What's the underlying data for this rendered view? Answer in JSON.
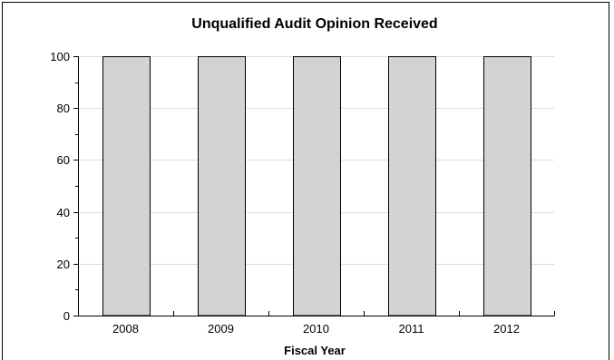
{
  "chart_data": {
    "type": "bar",
    "title": "Unqualified Audit Opinion Received",
    "xlabel": "Fiscal Year",
    "ylabel": "",
    "categories": [
      "2008",
      "2009",
      "2010",
      "2011",
      "2012"
    ],
    "values": [
      100,
      100,
      100,
      100,
      100
    ],
    "ylim": [
      0,
      100
    ],
    "yticks": [
      0,
      20,
      40,
      60,
      80,
      100
    ],
    "ytick_labels": [
      "0",
      "20",
      "40",
      "60",
      "80",
      "100"
    ],
    "grid": true,
    "legend": "none",
    "colors": {
      "bar_fill": "#d3d3d3",
      "bar_stroke": "#000000",
      "grid": "#dcdcdc",
      "axis": "#000000"
    }
  }
}
